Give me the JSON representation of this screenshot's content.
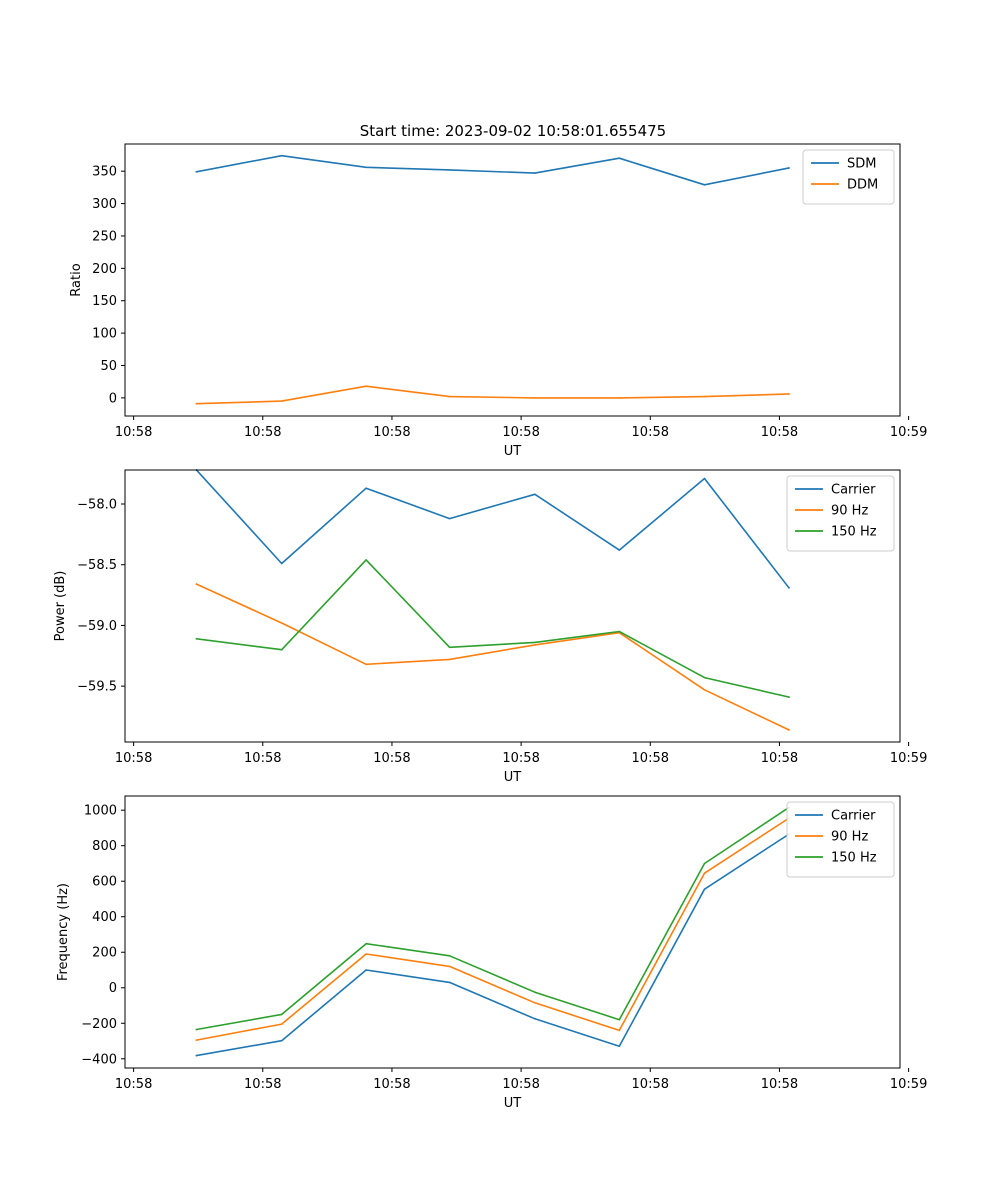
{
  "title": "Start time: 2023-09-02 10:58:01.655475",
  "colors": {
    "blue": "#1f77b4",
    "orange": "#ff7f0e",
    "green": "#2ca02c",
    "axis": "#000000",
    "legend_border": "#cccccc"
  },
  "chart_data": [
    {
      "type": "line",
      "name": "ratio-panel",
      "title": "Start time: 2023-09-02 10:58:01.655475",
      "xlabel": "UT",
      "ylabel": "Ratio",
      "xlim": [
        -0.1,
        8.9
      ],
      "ylim": [
        -28,
        392
      ],
      "x_ticks": [
        0,
        1.5,
        3,
        4.5,
        6,
        7.5,
        9
      ],
      "x_tick_labels": [
        "10:58",
        "10:58",
        "10:58",
        "10:58",
        "10:58",
        "10:58",
        "10:59"
      ],
      "y_ticks": [
        0,
        50,
        100,
        150,
        200,
        250,
        300,
        350
      ],
      "y_tick_labels": [
        "0",
        "50",
        "100",
        "150",
        "200",
        "250",
        "300",
        "350"
      ],
      "x": [
        0.73,
        1.72,
        2.7,
        3.67,
        4.66,
        5.64,
        6.63,
        7.61
      ],
      "series": [
        {
          "name": "SDM",
          "color": "#1f77b4",
          "values": [
            349,
            374,
            356,
            352,
            347,
            370,
            329,
            355
          ]
        },
        {
          "name": "DDM",
          "color": "#ff7f0e",
          "values": [
            -9,
            -5,
            18,
            2,
            0,
            0,
            2,
            6
          ]
        }
      ],
      "legend": "top-right"
    },
    {
      "type": "line",
      "name": "power-panel",
      "xlabel": "UT",
      "ylabel": "Power (dB)",
      "xlim": [
        -0.1,
        8.9
      ],
      "ylim": [
        -59.96,
        -57.72
      ],
      "x_ticks": [
        0,
        1.5,
        3,
        4.5,
        6,
        7.5,
        9
      ],
      "x_tick_labels": [
        "10:58",
        "10:58",
        "10:58",
        "10:58",
        "10:58",
        "10:58",
        "10:59"
      ],
      "y_ticks": [
        -59.5,
        -59.0,
        -58.5,
        -58.0
      ],
      "y_tick_labels": [
        "−59.5",
        "−59.0",
        "−58.5",
        "−58.0"
      ],
      "x": [
        0.73,
        1.72,
        2.7,
        3.67,
        4.66,
        5.64,
        6.63,
        7.61
      ],
      "series": [
        {
          "name": "Carrier",
          "color": "#1f77b4",
          "values": [
            -57.72,
            -58.49,
            -57.87,
            -58.12,
            -57.92,
            -58.38,
            -57.79,
            -58.69
          ]
        },
        {
          "name": "90 Hz",
          "color": "#ff7f0e",
          "values": [
            -58.66,
            -58.98,
            -59.32,
            -59.28,
            -59.16,
            -59.06,
            -59.53,
            -59.86
          ]
        },
        {
          "name": "150 Hz",
          "color": "#2ca02c",
          "values": [
            -59.11,
            -59.2,
            -58.46,
            -59.18,
            -59.14,
            -59.05,
            -59.43,
            -59.59
          ]
        }
      ],
      "legend": "top-right"
    },
    {
      "type": "line",
      "name": "frequency-panel",
      "xlabel": "UT",
      "ylabel": "Frequency (Hz)",
      "xlim": [
        -0.1,
        8.9
      ],
      "ylim": [
        -452,
        1080
      ],
      "x_ticks": [
        0,
        1.5,
        3,
        4.5,
        6,
        7.5,
        9
      ],
      "x_tick_labels": [
        "10:58",
        "10:58",
        "10:58",
        "10:58",
        "10:58",
        "10:58",
        "10:59"
      ],
      "y_ticks": [
        -400,
        -200,
        0,
        200,
        400,
        600,
        800,
        1000
      ],
      "y_tick_labels": [
        "−400",
        "−200",
        "0",
        "200",
        "400",
        "600",
        "800",
        "1000"
      ],
      "x": [
        0.73,
        1.72,
        2.7,
        3.67,
        4.66,
        5.64,
        6.63,
        7.61
      ],
      "series": [
        {
          "name": "Carrier",
          "color": "#1f77b4",
          "values": [
            -382,
            -298,
            100,
            30,
            -175,
            -330,
            555,
            865
          ]
        },
        {
          "name": "90 Hz",
          "color": "#ff7f0e",
          "values": [
            -295,
            -205,
            190,
            120,
            -85,
            -240,
            645,
            955
          ]
        },
        {
          "name": "150 Hz",
          "color": "#2ca02c",
          "values": [
            -235,
            -150,
            248,
            180,
            -25,
            -180,
            700,
            1015
          ]
        }
      ],
      "legend": "top-right"
    }
  ]
}
